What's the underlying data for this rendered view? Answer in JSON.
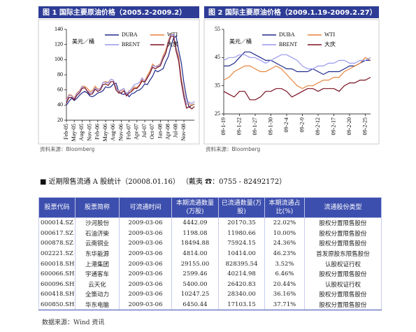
{
  "chart_data": [
    {
      "type": "line",
      "title": "图 1  国际主要原油价格（2005.2-2009.2）",
      "ylabel": "美元／桶",
      "source": "资料来源：Bloomberg",
      "categories": [
        "Feb-05",
        null,
        null,
        "May-05",
        null,
        null,
        "Aug-05",
        null,
        null,
        "Nov-05",
        null,
        null,
        "Feb-06",
        null,
        null,
        "May-06",
        null,
        null,
        "Aug-06",
        null,
        null,
        "Nov-06",
        null,
        null,
        "Feb-07",
        null,
        null,
        "Apr-07",
        null,
        null,
        "Jul-07",
        null,
        null,
        "Oct-07",
        null,
        null,
        "Jan-08",
        null,
        null,
        "Apr-08",
        null,
        null,
        "Jul-08",
        null,
        null,
        "Nov-08",
        null,
        null,
        null,
        null
      ],
      "ylim": [
        20,
        140
      ],
      "yticks": [
        20,
        40,
        60,
        80,
        100,
        120,
        140
      ],
      "series": [
        {
          "name": "DUBA",
          "color": "#1f2a8a",
          "values": [
            40,
            45,
            49,
            46,
            49,
            53,
            56,
            58,
            56,
            52,
            51,
            53,
            56,
            57,
            59,
            64,
            63,
            64,
            68,
            69,
            58,
            55,
            54,
            56,
            51,
            55,
            56,
            59,
            60,
            63,
            68,
            67,
            73,
            78,
            86,
            84,
            86,
            88,
            97,
            104,
            117,
            128,
            131,
            112,
            96,
            69,
            50,
            37,
            40,
            41
          ]
        },
        {
          "name": "WTI",
          "color": "#e8843a",
          "values": [
            47,
            54,
            53,
            49,
            56,
            59,
            65,
            65,
            62,
            58,
            59,
            65,
            61,
            62,
            70,
            71,
            70,
            74,
            73,
            63,
            58,
            59,
            62,
            54,
            59,
            60,
            64,
            63,
            67,
            74,
            72,
            79,
            85,
            94,
            91,
            92,
            95,
            105,
            112,
            125,
            134,
            133,
            116,
            104,
            76,
            57,
            41,
            42,
            39,
            42
          ]
        },
        {
          "name": "BRENT",
          "color": "#9999ee",
          "values": [
            45,
            53,
            52,
            48,
            55,
            58,
            64,
            63,
            59,
            56,
            57,
            63,
            60,
            62,
            70,
            70,
            69,
            74,
            73,
            62,
            59,
            60,
            62,
            54,
            58,
            62,
            67,
            68,
            70,
            76,
            71,
            77,
            82,
            92,
            91,
            91,
            94,
            103,
            109,
            123,
            133,
            133,
            114,
            100,
            73,
            54,
            41,
            44,
            42,
            45
          ]
        },
        {
          "name": "大庆",
          "color": "#7a1020",
          "values": [
            43,
            50,
            50,
            47,
            53,
            56,
            62,
            63,
            58,
            54,
            55,
            61,
            58,
            60,
            67,
            68,
            66,
            71,
            71,
            60,
            56,
            56,
            59,
            52,
            56,
            58,
            62,
            62,
            66,
            72,
            70,
            76,
            82,
            90,
            88,
            90,
            92,
            101,
            108,
            121,
            131,
            131,
            111,
            98,
            70,
            50,
            36,
            38,
            35,
            38
          ]
        }
      ]
    },
    {
      "type": "line",
      "title": "图 2  国际主要原油价格（2009.1.19-2009.2.27）",
      "ylabel": "美元／桶",
      "source": "资料来源：Bloomberg",
      "categories": [
        "09-1-19",
        null,
        null,
        "09-1-22",
        null,
        null,
        "09-1-27",
        null,
        null,
        "09-1-30",
        null,
        null,
        "09-2-4",
        null,
        null,
        "09-2-9",
        null,
        null,
        "09-2-12",
        null,
        null,
        "09-2-17",
        null,
        null,
        "09-2-20",
        null,
        null,
        "09-2-25",
        null
      ],
      "ylim": [
        25,
        55
      ],
      "yticks": [
        25,
        35,
        45,
        55
      ],
      "series": [
        {
          "name": "DUBA",
          "color": "#1f2a8a",
          "values": [
            42,
            42,
            43,
            45,
            47,
            47,
            46,
            45,
            44,
            44,
            43,
            42,
            41,
            41,
            40,
            40,
            40,
            41,
            40,
            39,
            40,
            40,
            40,
            41,
            42,
            42,
            43,
            44,
            44
          ]
        },
        {
          "name": "WTI",
          "color": "#e8843a",
          "values": [
            37,
            38,
            40,
            41,
            42,
            42,
            41,
            40,
            40,
            41,
            42,
            41,
            39,
            37,
            35,
            34,
            35,
            35,
            36,
            37,
            37,
            38,
            38,
            40,
            41,
            42,
            43,
            45,
            44
          ]
        },
        {
          "name": "BRENT",
          "color": "#9999ee",
          "values": [
            44,
            45,
            45,
            46,
            46,
            45,
            45,
            44,
            43,
            44,
            45,
            46,
            46,
            45,
            44,
            42,
            41,
            41,
            42,
            42,
            43,
            43,
            44,
            44,
            43,
            43,
            44,
            44,
            45
          ]
        },
        {
          "name": "大庆",
          "color": "#7a1020",
          "values": [
            33,
            32,
            31,
            33,
            33,
            30,
            30,
            31,
            33,
            33,
            34,
            34,
            33,
            31,
            32,
            33,
            34,
            34,
            33,
            34,
            34,
            34,
            33,
            35,
            36,
            36,
            37,
            37,
            38
          ]
        }
      ]
    }
  ],
  "section": {
    "title": "■  近期限售流通 A 股统计（20008.01.16）  （戴夷    ☎：0755 - 82492172）"
  },
  "table": {
    "columns": [
      "股票代码",
      "股票简称",
      "可流通时间",
      "本期流通数量(万股)",
      "已流通数量(万股)",
      "本期流通占比(%)",
      "流通股份类型"
    ],
    "rows": [
      [
        "000014.SZ",
        "沙河股份",
        "2009-03-06",
        "4442.09",
        "20170.35",
        "22.02%",
        "股权分置限售股份"
      ],
      [
        "000617.SZ",
        "石油济柴",
        "2009-03-06",
        "1198.08",
        "11980.66",
        "10.00%",
        "股权分置限售股份"
      ],
      [
        "000878.SZ",
        "云南铜业",
        "2009-03-06",
        "18494.88",
        "75924.15",
        "24.36%",
        "股权分置限售股份"
      ],
      [
        "002221.SZ",
        "东华能源",
        "2009-03-06",
        "4814.00",
        "10414.00",
        "46.23%",
        "首发原股东限售股份"
      ],
      [
        "600018.SH",
        "上港集团",
        "2009-03-06",
        "29155.00",
        "828395.54",
        "3.52%",
        "认股权证行权"
      ],
      [
        "600066.SH",
        "宇通客车",
        "2009-03-06",
        "2599.46",
        "40214.98",
        "6.46%",
        "股权分置限售股份"
      ],
      [
        "600096.SH",
        "云天化",
        "2009-03-06",
        "5400.00",
        "26420.83",
        "20.44%",
        "认股权证行权"
      ],
      [
        "600418.SH",
        "全策动力",
        "2009-03-06",
        "10247.25",
        "28340.00",
        "36.16%",
        "股权分置限售股份"
      ],
      [
        "600850.SH",
        "华东电脑",
        "2009-03-06",
        "6450.44",
        "17103.15",
        "37.71%",
        "股权分置限售股份"
      ]
    ],
    "source": "数据来源：Wind 资讯"
  }
}
